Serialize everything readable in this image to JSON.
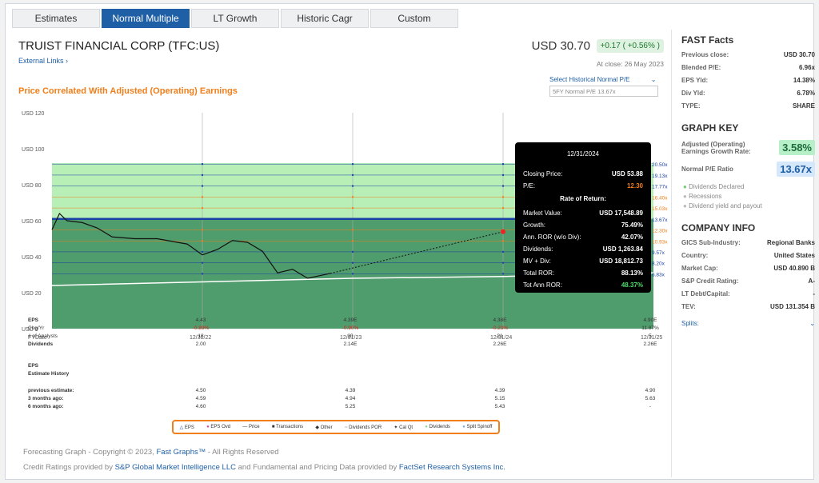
{
  "tabs": [
    "Estimates",
    "Normal Multiple",
    "LT Growth",
    "Historic Cagr",
    "Custom"
  ],
  "header": {
    "company": "TRUIST FINANCIAL CORP  (TFC:US)",
    "external_links": "External Links",
    "price": "USD 30.70",
    "change": "+0.17 ( +0.56% )",
    "close": "At close: 26 May 2023",
    "subtitle": "Price Correlated With Adjusted (Operating) Earnings",
    "hist_select": "Select Historical Normal P/E",
    "hist_input": "5FY Normal P/E 13.67x"
  },
  "chart_data": {
    "type": "line",
    "y_ticks": [
      "USD 120",
      "USD 100",
      "USD 80",
      "USD 60",
      "USD 40",
      "USD 20",
      "USD 0"
    ],
    "ylim": [
      0,
      120
    ],
    "x_ticks": [
      "FYDate",
      "12/31/22",
      "12/31/23",
      "12/31/24",
      "12/31/25"
    ],
    "pe_labels": [
      "20.50x",
      "19.13x",
      "17.77x",
      "16.40x",
      "15.03x",
      "13.67x",
      "12.30x",
      "10.93x",
      "9.57x",
      "8.20x",
      "6.83x"
    ],
    "normal_value_line": [
      61,
      61,
      61,
      61
    ],
    "price_end": 30.7,
    "projection_end": 53.88
  },
  "tooltip": {
    "date": "12/31/2024",
    "closing_price_label": "Closing Price:",
    "closing_price": "USD 53.88",
    "pe_label": "P/E:",
    "pe": "12.30",
    "ror_title": "Rate of Return:",
    "market_value_label": "Market Value:",
    "market_value": "USD 17,548.89",
    "growth_label": "Growth:",
    "growth": "75.49%",
    "ann_ror_label": "Ann. ROR (w/o Div):",
    "ann_ror": "42.07%",
    "dividends_label": "Dividends:",
    "dividends": "USD 1,263.84",
    "mv_div_label": "MV + Div:",
    "mv_div": "USD 18,812.73",
    "total_ror_label": "Total ROR:",
    "total_ror": "88.13%",
    "tot_ann_label": "Tot Ann ROR:",
    "tot_ann": "48.37%"
  },
  "table": {
    "labels": [
      "EPS",
      "Chg/Yr",
      "# of Analysts",
      "Dividends"
    ],
    "cols": [
      [
        "4.43",
        "-0.89%",
        "18",
        "2.00"
      ],
      [
        "4.39E",
        "-0.90%",
        "20",
        "2.14E"
      ],
      [
        "4.38E",
        "-0.23%",
        "21",
        "2.26E"
      ],
      [
        "4.90E",
        "11.87%",
        "5",
        "2.26E"
      ]
    ],
    "eps_hist_1": "EPS",
    "eps_hist_2": "Estimate History",
    "hist_labels": [
      "previous estimate:",
      "3 months ago:",
      "6 months ago:"
    ],
    "hist_cols": [
      [
        "4.50",
        "4.59",
        "4.60"
      ],
      [
        "4.39",
        "4.94",
        "5.25"
      ],
      [
        "4.39",
        "5.15",
        "5.43"
      ],
      [
        "4.90",
        "5.63",
        "-"
      ]
    ]
  },
  "legend": [
    "EPS",
    "EPS Ovd",
    "Price",
    "Transactions",
    "Other",
    "Dividends POR",
    "Cal Qt",
    "Dividends",
    "Split Spinoff"
  ],
  "footer": {
    "copy1": "Forecasting Graph - Copyright © 2023, ",
    "copy_link": "Fast Graphs™",
    "copy2": " - All Rights Reserved",
    "credit1": "Credit Ratings provided by ",
    "credit_link1": "S&P Global Market Intelligence LLC",
    "credit2": " and Fundamental and Pricing Data provided by ",
    "credit_link2": "FactSet Research Systems Inc."
  },
  "side": {
    "fast_title": "FAST Facts",
    "facts": [
      {
        "k": "Previous close:",
        "v": "USD 30.70"
      },
      {
        "k": "Blended P/E:",
        "v": "6.96x"
      },
      {
        "k": "EPS Yld:",
        "v": "14.38%"
      },
      {
        "k": "Div Yld:",
        "v": "6.78%"
      },
      {
        "k": "TYPE:",
        "v": "SHARE"
      }
    ],
    "graph_key_title": "GRAPH KEY",
    "growth_label": "Adjusted (Operating) Earnings Growth Rate:",
    "growth_value": "3.58%",
    "pe_label": "Normal P/E Ratio",
    "pe_value": "13.67x",
    "key_items": [
      "Dividends Declared",
      "Recessions",
      "Dividend yield and payout"
    ],
    "company_title": "COMPANY INFO",
    "info": [
      {
        "k": "GICS Sub-Industry:",
        "v": "Regional Banks"
      },
      {
        "k": "Country:",
        "v": "United States"
      },
      {
        "k": "Market Cap:",
        "v": "USD 40.890 B"
      },
      {
        "k": "S&P Credit Rating:",
        "v": "A-"
      },
      {
        "k": "LT Debt/Capital:",
        "v": "-"
      },
      {
        "k": "TEV:",
        "v": "USD 131.354 B"
      }
    ],
    "splits": "Splits:"
  }
}
